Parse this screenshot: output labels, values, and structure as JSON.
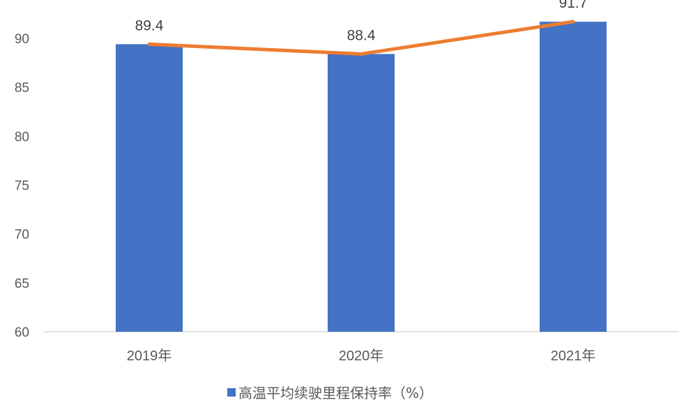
{
  "chart_data": {
    "type": "bar",
    "categories": [
      "2019年",
      "2020年",
      "2021年"
    ],
    "series": [
      {
        "name": "高温平均续驶里程保持率（%）",
        "type": "bar",
        "values": [
          89.4,
          88.4,
          91.7
        ]
      },
      {
        "type": "line",
        "values": [
          89.4,
          88.4,
          91.7
        ]
      }
    ],
    "data_labels": [
      "89.4",
      "88.4",
      "91.7"
    ],
    "ylim": [
      60,
      92
    ],
    "yticks": [
      60,
      65,
      70,
      75,
      80,
      85,
      90
    ],
    "grid": false,
    "legend_position": "bottom",
    "colors": {
      "bar": "#4472C4",
      "line": "#ED7D31",
      "axis": "#D9D9D9",
      "text": "#595959"
    }
  }
}
